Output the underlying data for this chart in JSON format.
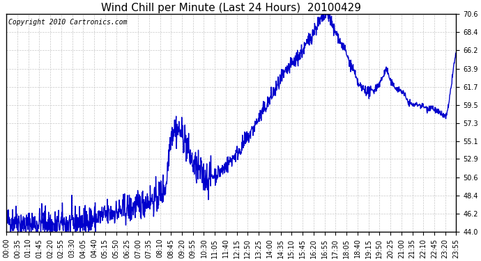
{
  "title": "Wind Chill per Minute (Last 24 Hours)  20100429",
  "copyright_text": "Copyright 2010 Cartronics.com",
  "line_color": "#0000cc",
  "background_color": "#ffffff",
  "grid_color": "#c8c8c8",
  "ylim": [
    44.0,
    70.6
  ],
  "yticks": [
    44.0,
    46.2,
    48.4,
    50.6,
    52.9,
    55.1,
    57.3,
    59.5,
    61.7,
    63.9,
    66.2,
    68.4,
    70.6
  ],
  "xtick_labels": [
    "00:00",
    "00:35",
    "01:10",
    "01:45",
    "02:20",
    "02:55",
    "03:30",
    "04:05",
    "04:40",
    "05:15",
    "05:50",
    "06:25",
    "07:00",
    "07:35",
    "08:10",
    "08:45",
    "09:20",
    "09:55",
    "10:30",
    "11:05",
    "11:40",
    "12:15",
    "12:50",
    "13:25",
    "14:00",
    "14:35",
    "15:10",
    "15:45",
    "16:20",
    "16:55",
    "17:30",
    "18:05",
    "18:40",
    "19:15",
    "19:50",
    "20:25",
    "21:00",
    "21:35",
    "22:10",
    "22:45",
    "23:20",
    "23:55"
  ],
  "title_fontsize": 11,
  "copyright_fontsize": 7,
  "tick_fontsize": 7,
  "line_width": 1.0,
  "figwidth": 6.9,
  "figheight": 3.75,
  "dpi": 100,
  "keypoints": [
    [
      0,
      45.2
    ],
    [
      30,
      45.5
    ],
    [
      60,
      44.8
    ],
    [
      90,
      45.0
    ],
    [
      120,
      45.3
    ],
    [
      150,
      44.7
    ],
    [
      180,
      45.1
    ],
    [
      210,
      45.0
    ],
    [
      240,
      45.2
    ],
    [
      270,
      45.5
    ],
    [
      300,
      45.8
    ],
    [
      330,
      46.2
    ],
    [
      360,
      46.5
    ],
    [
      390,
      46.8
    ],
    [
      420,
      47.2
    ],
    [
      450,
      47.8
    ],
    [
      480,
      48.0
    ],
    [
      510,
      49.5
    ],
    [
      525,
      55.8
    ],
    [
      540,
      56.8
    ],
    [
      555,
      56.2
    ],
    [
      570,
      55.5
    ],
    [
      585,
      53.5
    ],
    [
      600,
      52.0
    ],
    [
      615,
      51.5
    ],
    [
      630,
      50.8
    ],
    [
      645,
      50.6
    ],
    [
      660,
      50.8
    ],
    [
      690,
      51.5
    ],
    [
      720,
      52.8
    ],
    [
      750,
      54.2
    ],
    [
      780,
      56.0
    ],
    [
      810,
      58.0
    ],
    [
      840,
      60.0
    ],
    [
      870,
      62.0
    ],
    [
      900,
      63.8
    ],
    [
      930,
      65.2
    ],
    [
      960,
      66.8
    ],
    [
      975,
      68.0
    ],
    [
      990,
      69.0
    ],
    [
      1005,
      69.8
    ],
    [
      1020,
      70.4
    ],
    [
      1030,
      70.6
    ],
    [
      1035,
      70.3
    ],
    [
      1042,
      69.2
    ],
    [
      1050,
      68.5
    ],
    [
      1060,
      68.0
    ],
    [
      1070,
      67.0
    ],
    [
      1080,
      66.5
    ],
    [
      1090,
      65.5
    ],
    [
      1100,
      64.5
    ],
    [
      1110,
      63.8
    ],
    [
      1120,
      62.5
    ],
    [
      1130,
      61.8
    ],
    [
      1140,
      61.5
    ],
    [
      1150,
      61.3
    ],
    [
      1160,
      61.0
    ],
    [
      1170,
      61.2
    ],
    [
      1180,
      61.5
    ],
    [
      1190,
      62.0
    ],
    [
      1200,
      62.5
    ],
    [
      1210,
      63.5
    ],
    [
      1215,
      63.9
    ],
    [
      1220,
      63.5
    ],
    [
      1225,
      62.8
    ],
    [
      1230,
      62.2
    ],
    [
      1240,
      61.8
    ],
    [
      1250,
      61.5
    ],
    [
      1260,
      61.3
    ],
    [
      1270,
      61.0
    ],
    [
      1280,
      60.2
    ],
    [
      1290,
      59.7
    ],
    [
      1300,
      59.5
    ],
    [
      1310,
      59.5
    ],
    [
      1315,
      59.6
    ],
    [
      1320,
      59.5
    ],
    [
      1330,
      59.4
    ],
    [
      1340,
      59.2
    ],
    [
      1345,
      59.0
    ],
    [
      1350,
      59.1
    ],
    [
      1355,
      59.3
    ],
    [
      1360,
      59.3
    ],
    [
      1365,
      59.1
    ],
    [
      1370,
      58.9
    ],
    [
      1375,
      58.8
    ],
    [
      1380,
      58.6
    ],
    [
      1385,
      58.5
    ],
    [
      1390,
      58.4
    ],
    [
      1395,
      58.3
    ],
    [
      1400,
      58.2
    ],
    [
      1405,
      58.0
    ],
    [
      1410,
      58.5
    ],
    [
      1415,
      59.5
    ],
    [
      1420,
      61.0
    ],
    [
      1425,
      62.5
    ],
    [
      1430,
      64.0
    ],
    [
      1435,
      65.2
    ],
    [
      1439,
      65.8
    ]
  ]
}
